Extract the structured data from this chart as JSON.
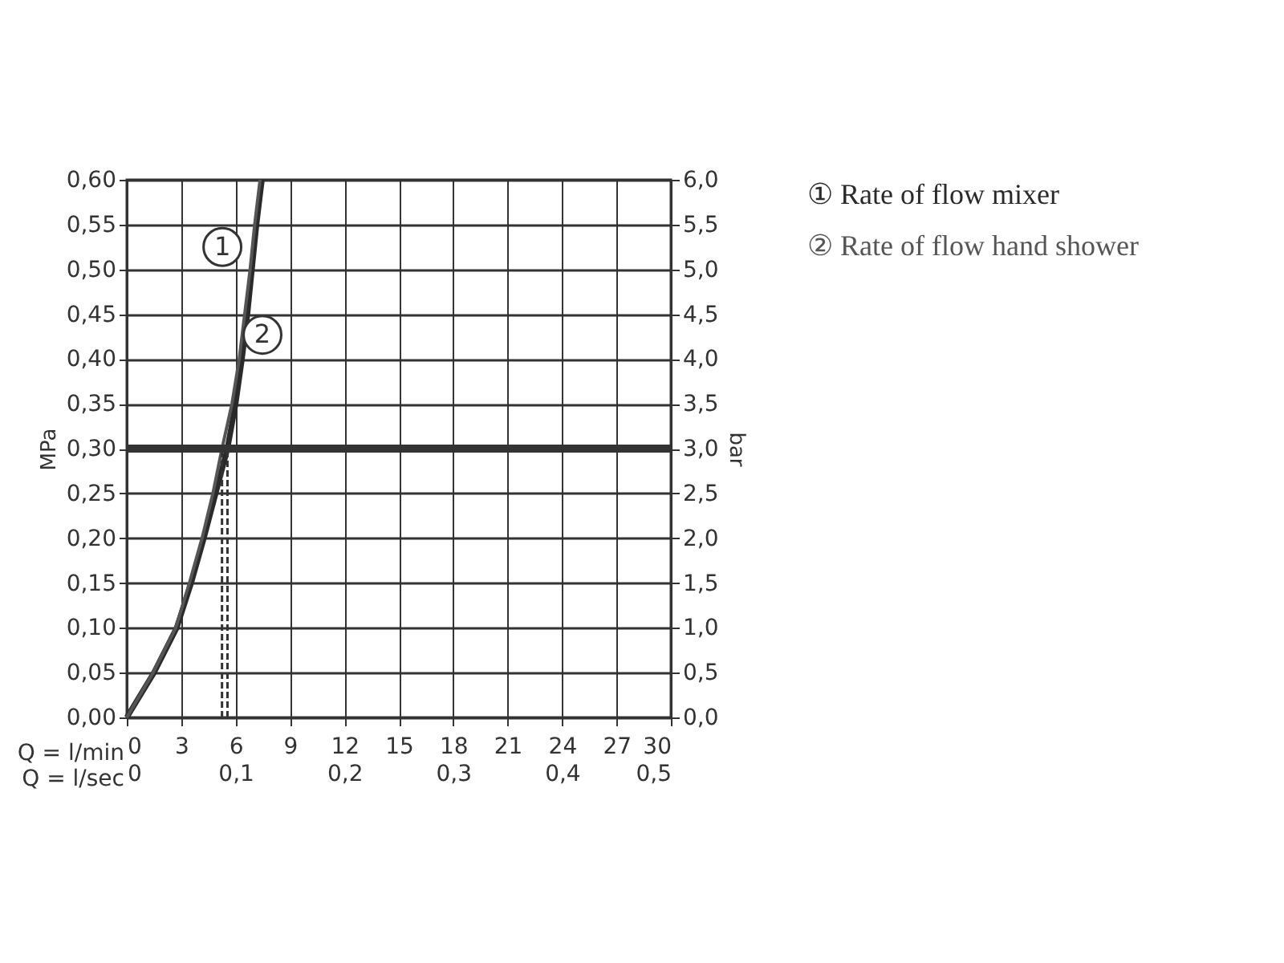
{
  "chart_data": {
    "type": "line",
    "xlabel": "Q = l/min",
    "x2label": "Q = l/sec",
    "ylabel": "MPa",
    "y2label": "bar",
    "xlim": [
      0,
      30
    ],
    "xticks": [
      0,
      3,
      6,
      9,
      12,
      15,
      18,
      21,
      24,
      27,
      30
    ],
    "x2lim": [
      0,
      0.5
    ],
    "x2ticks": [
      {
        "value": 0,
        "label": "0"
      },
      {
        "value": 0.1,
        "label": "0,1"
      },
      {
        "value": 0.2,
        "label": "0,2"
      },
      {
        "value": 0.3,
        "label": "0,3"
      },
      {
        "value": 0.4,
        "label": "0,4"
      },
      {
        "value": 0.5,
        "label": "0,5"
      }
    ],
    "ylim": [
      0,
      0.6
    ],
    "yticks": [
      {
        "value": 0,
        "label": "0,00"
      },
      {
        "value": 0.05,
        "label": "0,05"
      },
      {
        "value": 0.1,
        "label": "0,10"
      },
      {
        "value": 0.15,
        "label": "0,15"
      },
      {
        "value": 0.2,
        "label": "0,20"
      },
      {
        "value": 0.25,
        "label": "0,25"
      },
      {
        "value": 0.3,
        "label": "0,30"
      },
      {
        "value": 0.35,
        "label": "0,35"
      },
      {
        "value": 0.4,
        "label": "0,40"
      },
      {
        "value": 0.45,
        "label": "0,45"
      },
      {
        "value": 0.5,
        "label": "0,50"
      },
      {
        "value": 0.55,
        "label": "0,55"
      },
      {
        "value": 0.6,
        "label": "0,60"
      }
    ],
    "y2lim": [
      0,
      6
    ],
    "y2ticks": [
      {
        "value": 0,
        "label": "0,0"
      },
      {
        "value": 0.5,
        "label": "0,5"
      },
      {
        "value": 1,
        "label": "1,0"
      },
      {
        "value": 1.5,
        "label": "1,5"
      },
      {
        "value": 2,
        "label": "2,0"
      },
      {
        "value": 2.5,
        "label": "2,5"
      },
      {
        "value": 3,
        "label": "3,0"
      },
      {
        "value": 3.5,
        "label": "3,5"
      },
      {
        "value": 4,
        "label": "4,0"
      },
      {
        "value": 4.5,
        "label": "4,5"
      },
      {
        "value": 5,
        "label": "5,0"
      },
      {
        "value": 5.5,
        "label": "5,5"
      },
      {
        "value": 6,
        "label": "6,0"
      }
    ],
    "grid": true,
    "legend": "top right",
    "marker": "none",
    "line_style": "solid",
    "series": [
      {
        "name": "① Rate of flow mixer",
        "color": "#2a2a2a",
        "x": [
          0,
          1.5,
          2.75,
          3.55,
          4.25,
          4.9,
          5.55,
          6.0,
          6.35,
          6.65,
          6.9,
          7.15,
          7.45
        ],
        "values": [
          0,
          0.05,
          0.1,
          0.15,
          0.2,
          0.25,
          0.3,
          0.35,
          0.4,
          0.45,
          0.5,
          0.55,
          0.6
        ]
      },
      {
        "name": "② Rate of flow hand shower",
        "color": "#555555",
        "x": [
          0,
          1.45,
          2.7,
          3.45,
          4.15,
          4.75,
          5.25,
          5.8,
          6.2,
          6.5,
          6.8,
          7.05,
          7.35
        ],
        "values": [
          0,
          0.05,
          0.1,
          0.15,
          0.2,
          0.25,
          0.3,
          0.35,
          0.4,
          0.45,
          0.5,
          0.55,
          0.6
        ]
      }
    ],
    "ref_lines": [
      {
        "axis": "y",
        "value": 0.3,
        "color": "#333333",
        "line_style": "solid"
      },
      {
        "axis": "x",
        "value": 5.25,
        "color": "#333333",
        "line_style": "dashed"
      },
      {
        "axis": "x",
        "value": 5.55,
        "color": "#333333",
        "line_style": "dashed"
      }
    ],
    "annotations": [
      {
        "text": "1",
        "x": 5.27,
        "y": 0.525
      },
      {
        "text": "2",
        "x": 7.48,
        "y": 0.427
      }
    ]
  }
}
